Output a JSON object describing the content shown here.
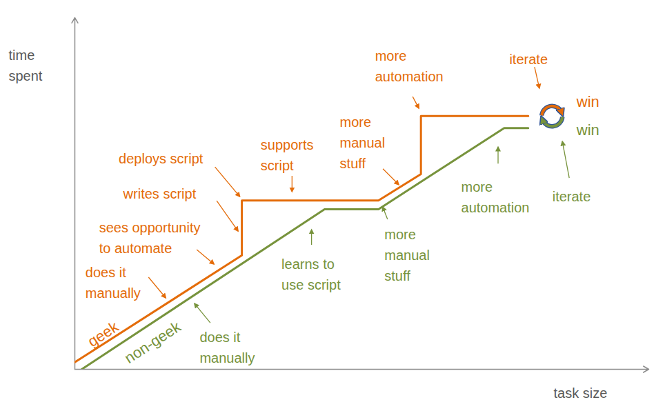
{
  "chart_data": {
    "type": "line",
    "x_label": "task size",
    "y_label": "time\nspent",
    "xlim": [
      0,
      100
    ],
    "ylim": [
      0,
      100
    ],
    "xticks": [],
    "yticks": [],
    "tick_labels": false,
    "grid": false,
    "series": [
      {
        "name": "geek",
        "color": "#E46C0A",
        "end_label": "win",
        "x": [
          0,
          29.1,
          29.1,
          52.9,
          60.3,
          60.3,
          79.0
        ],
        "values": [
          2.0,
          32.4,
          48.0,
          48.0,
          55.5,
          72.0,
          72.0
        ]
      },
      {
        "name": "non-geek",
        "color": "#77933C",
        "end_label": "win",
        "x": [
          1.2,
          43.5,
          52.9,
          74.8,
          79.0
        ],
        "values": [
          0,
          45.5,
          45.5,
          68.6,
          68.6
        ]
      }
    ],
    "annotations": [
      {
        "text": "does it\nmanually",
        "series": "geek",
        "x": 15.9,
        "y": 20.2
      },
      {
        "text": "sees opportunity\nto automate",
        "series": "geek",
        "x": 24.3,
        "y": 29.8
      },
      {
        "text": "writes script",
        "series": "geek",
        "x": 28.5,
        "y": 39.2
      },
      {
        "text": "deploys script",
        "series": "geek",
        "x": 28.8,
        "y": 49.0
      },
      {
        "text": "supports\nscript",
        "series": "geek",
        "x": 37.9,
        "y": 50.4
      },
      {
        "text": "more\nmanual\nstuff",
        "series": "geek",
        "x": 56.5,
        "y": 52.4
      },
      {
        "text": "more\nautomation",
        "series": "geek",
        "x": 60.0,
        "y": 74.1
      },
      {
        "text": "iterate",
        "series": "geek",
        "x": 81.0,
        "y": 79.8
      },
      {
        "text": "does it\nmanually",
        "series": "non-geek",
        "x": 20.9,
        "y": 18.6
      },
      {
        "text": "learns to\nuse script",
        "series": "non-geek",
        "x": 41.3,
        "y": 39.6
      },
      {
        "text": "more\nmanual\nstuff",
        "series": "non-geek",
        "x": 53.7,
        "y": 46.1
      },
      {
        "text": "more\nautomation",
        "series": "non-geek",
        "x": 73.8,
        "y": 63.1
      },
      {
        "text": "iterate",
        "series": "non-geek",
        "x": 85.0,
        "y": 64.7
      }
    ]
  }
}
